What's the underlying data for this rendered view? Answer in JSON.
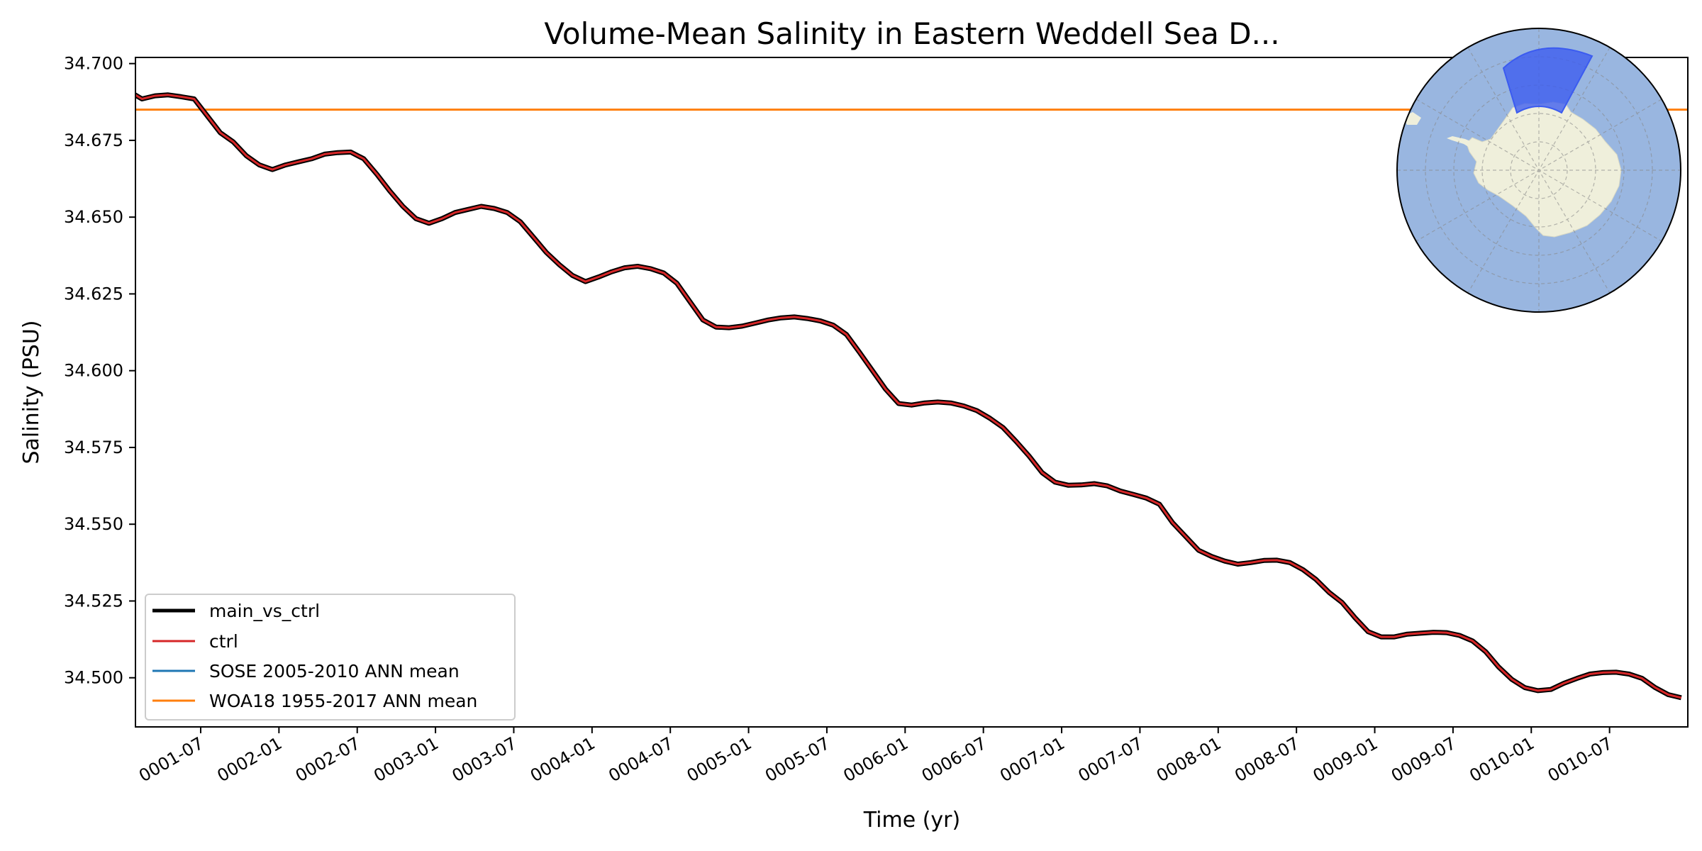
{
  "chart_data": {
    "type": "line",
    "title": "Volume-Mean Salinity in Eastern Weddell Sea D...",
    "xlabel": "Time (yr)",
    "ylabel": "Salinity (PSU)",
    "xlim": [
      0.0833,
      10.0
    ],
    "ylim": [
      34.484,
      34.702
    ],
    "grid": false,
    "legend_location": "lower-left",
    "x_ticks": [
      {
        "value": 0.5,
        "label": "0001-07"
      },
      {
        "value": 1.0,
        "label": "0002-01"
      },
      {
        "value": 1.5,
        "label": "0002-07"
      },
      {
        "value": 2.0,
        "label": "0003-01"
      },
      {
        "value": 2.5,
        "label": "0003-07"
      },
      {
        "value": 3.0,
        "label": "0004-01"
      },
      {
        "value": 3.5,
        "label": "0004-07"
      },
      {
        "value": 4.0,
        "label": "0005-01"
      },
      {
        "value": 4.5,
        "label": "0005-07"
      },
      {
        "value": 5.0,
        "label": "0006-01"
      },
      {
        "value": 5.5,
        "label": "0006-07"
      },
      {
        "value": 6.0,
        "label": "0007-01"
      },
      {
        "value": 6.5,
        "label": "0007-07"
      },
      {
        "value": 7.0,
        "label": "0008-01"
      },
      {
        "value": 7.5,
        "label": "0008-07"
      },
      {
        "value": 8.0,
        "label": "0009-01"
      },
      {
        "value": 8.5,
        "label": "0009-07"
      },
      {
        "value": 9.0,
        "label": "0010-01"
      },
      {
        "value": 9.5,
        "label": "0010-07"
      }
    ],
    "y_ticks": [
      {
        "value": 34.5,
        "label": "34.500"
      },
      {
        "value": 34.525,
        "label": "34.525"
      },
      {
        "value": 34.55,
        "label": "34.550"
      },
      {
        "value": 34.575,
        "label": "34.575"
      },
      {
        "value": 34.6,
        "label": "34.600"
      },
      {
        "value": 34.625,
        "label": "34.625"
      },
      {
        "value": 34.65,
        "label": "34.650"
      },
      {
        "value": 34.675,
        "label": "34.675"
      },
      {
        "value": 34.7,
        "label": "34.700"
      }
    ],
    "x": [
      0.0417,
      0.125,
      0.2083,
      0.2917,
      0.375,
      0.4583,
      0.5417,
      0.625,
      0.7083,
      0.7917,
      0.875,
      0.9583,
      1.0417,
      1.125,
      1.2083,
      1.2917,
      1.375,
      1.4583,
      1.5417,
      1.625,
      1.7083,
      1.7917,
      1.875,
      1.9583,
      2.0417,
      2.125,
      2.2083,
      2.2917,
      2.375,
      2.4583,
      2.5417,
      2.625,
      2.7083,
      2.7917,
      2.875,
      2.9583,
      3.0417,
      3.125,
      3.2083,
      3.2917,
      3.375,
      3.4583,
      3.5417,
      3.625,
      3.7083,
      3.7917,
      3.875,
      3.9583,
      4.0417,
      4.125,
      4.2083,
      4.2917,
      4.375,
      4.4583,
      4.5417,
      4.625,
      4.7083,
      4.7917,
      4.875,
      4.9583,
      5.0417,
      5.125,
      5.2083,
      5.2917,
      5.375,
      5.4583,
      5.5417,
      5.625,
      5.7083,
      5.7917,
      5.875,
      5.9583,
      6.0417,
      6.125,
      6.2083,
      6.2917,
      6.375,
      6.4583,
      6.5417,
      6.625,
      6.7083,
      6.7917,
      6.875,
      6.9583,
      7.0417,
      7.125,
      7.2083,
      7.2917,
      7.375,
      7.4583,
      7.5417,
      7.625,
      7.7083,
      7.7917,
      7.875,
      7.9583,
      8.0417,
      8.125,
      8.2083,
      8.2917,
      8.375,
      8.4583,
      8.5417,
      8.625,
      8.7083,
      8.7917,
      8.875,
      8.9583,
      9.0417,
      9.125,
      9.2083,
      9.2917,
      9.375,
      9.4583,
      9.5417,
      9.625,
      9.7083,
      9.7917,
      9.875,
      9.9583
    ],
    "series": [
      {
        "name": "main_vs_ctrl",
        "color": "#000000",
        "values": [
          34.691,
          34.6885,
          34.6895,
          34.6898,
          34.6892,
          34.6885,
          34.683,
          34.6775,
          34.6745,
          34.67,
          34.667,
          34.6655,
          34.667,
          34.668,
          34.669,
          34.6705,
          34.671,
          34.6712,
          34.669,
          34.664,
          34.6585,
          34.6535,
          34.6495,
          34.648,
          34.6495,
          34.6515,
          34.6525,
          34.6535,
          34.6528,
          34.6515,
          34.6485,
          34.6435,
          34.6385,
          34.6345,
          34.631,
          34.629,
          34.6305,
          34.6322,
          34.6335,
          34.634,
          34.6332,
          34.6318,
          34.6285,
          34.6225,
          34.6165,
          34.6142,
          34.614,
          34.6145,
          34.6155,
          34.6165,
          34.6172,
          34.6175,
          34.617,
          34.6162,
          34.6148,
          34.6118,
          34.606,
          34.6,
          34.594,
          34.5893,
          34.5888,
          34.5895,
          34.5898,
          34.5895,
          34.5885,
          34.587,
          34.5845,
          34.5815,
          34.577,
          34.5722,
          34.5668,
          34.5637,
          34.5627,
          34.5628,
          34.5632,
          34.5625,
          34.5608,
          34.5597,
          34.5585,
          34.5565,
          34.5505,
          34.546,
          34.5415,
          34.5395,
          34.538,
          34.537,
          34.5375,
          34.5382,
          34.5383,
          34.5375,
          34.5352,
          34.532,
          34.5278,
          34.5245,
          34.5195,
          34.515,
          34.5133,
          34.5133,
          34.5142,
          34.5145,
          34.5148,
          34.5147,
          34.5138,
          34.512,
          34.5085,
          34.5035,
          34.4995,
          34.4968,
          34.4958,
          34.4962,
          34.4982,
          34.4998,
          34.5012,
          34.5017,
          34.5018,
          34.5012,
          34.4998,
          34.4968,
          34.4945,
          34.4935
        ]
      },
      {
        "name": "ctrl",
        "color": "#d62728"
      },
      {
        "name": "SOSE 2005-2010 ANN mean",
        "color": "#1f77b4"
      },
      {
        "name": "WOA18 1955-2017 ANN mean",
        "color": "#ff7f0e",
        "constant": 34.685
      }
    ],
    "inset_map": {
      "type": "south-polar-stereographic",
      "ocean_color": "#99b6e0",
      "land_color": "#efefdb",
      "region_color": "#3b5bf0",
      "region": "Eastern Weddell Sea"
    }
  }
}
